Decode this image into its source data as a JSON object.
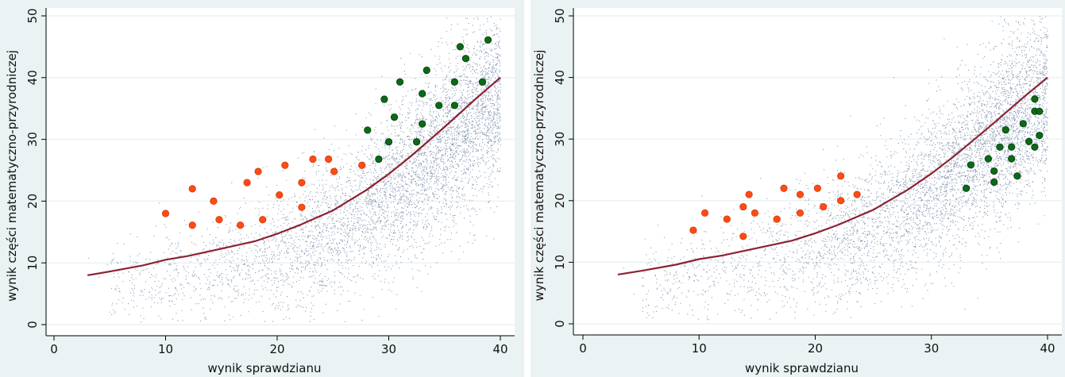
{
  "chart_data": [
    {
      "type": "scatter",
      "xlabel": "wynik sprawdzianu",
      "ylabel": "wynik części matematyczno-przyrodniczej",
      "xlim": [
        0,
        40
      ],
      "ylim": [
        0,
        50
      ],
      "xticks": [
        0,
        10,
        20,
        30,
        40
      ],
      "yticks": [
        0,
        10,
        20,
        30,
        40,
        50
      ],
      "grid": true,
      "colors": {
        "cloud": "#2b4a78",
        "curve": "#8b2232",
        "red": "#ff4b14",
        "green": "#0b6a17",
        "plot_bg": "#ffffff",
        "outer_bg": "#eaf2f3"
      },
      "curve": [
        [
          3,
          8.0
        ],
        [
          5,
          8.6
        ],
        [
          8,
          9.6
        ],
        [
          10,
          10.5
        ],
        [
          12,
          11.1
        ],
        [
          15,
          12.3
        ],
        [
          18,
          13.5
        ],
        [
          20,
          14.7
        ],
        [
          22,
          16.1
        ],
        [
          25,
          18.5
        ],
        [
          28,
          21.8
        ],
        [
          30,
          24.4
        ],
        [
          32,
          27.3
        ],
        [
          35,
          32.0
        ],
        [
          38,
          36.9
        ],
        [
          40,
          40.0
        ]
      ],
      "series": [
        {
          "color": "red",
          "points": [
            [
              10.0,
              18.0
            ],
            [
              12.4,
              22.0
            ],
            [
              12.4,
              16.1
            ],
            [
              14.3,
              20.0
            ],
            [
              14.8,
              17.0
            ],
            [
              16.7,
              16.1
            ],
            [
              17.3,
              23.0
            ],
            [
              18.3,
              24.8
            ],
            [
              18.7,
              17.0
            ],
            [
              20.2,
              21.0
            ],
            [
              20.7,
              25.8
            ],
            [
              22.2,
              23.0
            ],
            [
              22.2,
              19.0
            ],
            [
              23.2,
              26.8
            ],
            [
              24.6,
              26.8
            ],
            [
              25.1,
              24.8
            ],
            [
              27.6,
              25.8
            ]
          ]
        },
        {
          "color": "green",
          "points": [
            [
              28.1,
              31.5
            ],
            [
              29.1,
              26.8
            ],
            [
              29.6,
              36.5
            ],
            [
              30.0,
              29.6
            ],
            [
              30.5,
              33.6
            ],
            [
              31.0,
              39.3
            ],
            [
              32.5,
              29.6
            ],
            [
              33.0,
              37.4
            ],
            [
              33.0,
              32.5
            ],
            [
              33.4,
              41.2
            ],
            [
              34.5,
              35.5
            ],
            [
              35.9,
              39.3
            ],
            [
              35.9,
              35.5
            ],
            [
              36.4,
              45.0
            ],
            [
              36.9,
              43.1
            ],
            [
              38.4,
              39.3
            ],
            [
              38.9,
              46.1
            ]
          ]
        }
      ]
    },
    {
      "type": "scatter",
      "xlabel": "wynik sprawdzianu",
      "ylabel": "wynik części matematyczno-przyrodniczej",
      "xlim": [
        0,
        40
      ],
      "ylim": [
        0,
        50
      ],
      "xticks": [
        0,
        10,
        20,
        30,
        40
      ],
      "yticks": [
        0,
        10,
        20,
        30,
        40,
        50
      ],
      "grid": true,
      "colors": {
        "cloud": "#2b4a78",
        "curve": "#8b2232",
        "red": "#ff4b14",
        "green": "#0b6a17",
        "plot_bg": "#ffffff",
        "outer_bg": "#eaf2f3"
      },
      "curve": [
        [
          3,
          8.0
        ],
        [
          5,
          8.6
        ],
        [
          8,
          9.6
        ],
        [
          10,
          10.5
        ],
        [
          12,
          11.1
        ],
        [
          15,
          12.3
        ],
        [
          18,
          13.5
        ],
        [
          20,
          14.7
        ],
        [
          22,
          16.1
        ],
        [
          25,
          18.5
        ],
        [
          28,
          21.8
        ],
        [
          30,
          24.4
        ],
        [
          32,
          27.3
        ],
        [
          35,
          32.0
        ],
        [
          38,
          36.9
        ],
        [
          40,
          40.0
        ]
      ],
      "series": [
        {
          "color": "red",
          "points": [
            [
              9.5,
              15.2
            ],
            [
              10.5,
              18.0
            ],
            [
              12.4,
              17.0
            ],
            [
              13.8,
              14.2
            ],
            [
              13.8,
              19.0
            ],
            [
              14.3,
              21.0
            ],
            [
              14.8,
              18.0
            ],
            [
              16.7,
              17.0
            ],
            [
              17.3,
              22.0
            ],
            [
              18.7,
              18.0
            ],
            [
              18.7,
              21.0
            ],
            [
              20.2,
              22.0
            ],
            [
              20.7,
              19.0
            ],
            [
              22.2,
              24.0
            ],
            [
              22.2,
              20.0
            ],
            [
              23.6,
              21.0
            ]
          ]
        },
        {
          "color": "green",
          "points": [
            [
              33.0,
              22.0
            ],
            [
              33.4,
              25.8
            ],
            [
              34.9,
              26.8
            ],
            [
              35.4,
              23.0
            ],
            [
              35.4,
              24.8
            ],
            [
              35.9,
              28.7
            ],
            [
              36.4,
              31.5
            ],
            [
              36.9,
              28.7
            ],
            [
              36.9,
              26.8
            ],
            [
              37.4,
              24.0
            ],
            [
              37.9,
              32.5
            ],
            [
              38.4,
              29.6
            ],
            [
              38.9,
              34.5
            ],
            [
              38.9,
              36.5
            ],
            [
              38.9,
              28.7
            ],
            [
              39.3,
              34.5
            ],
            [
              39.3,
              30.6
            ]
          ]
        }
      ]
    }
  ]
}
